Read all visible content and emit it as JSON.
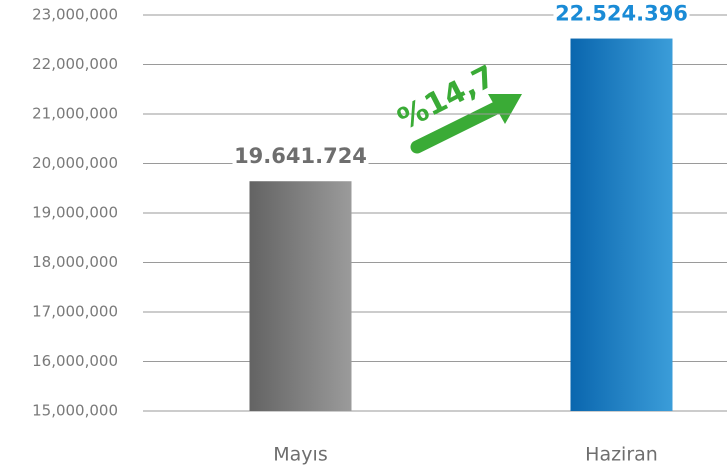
{
  "chart_data": {
    "type": "bar",
    "categories": [
      "Mayıs",
      "Haziran"
    ],
    "values": [
      19641724,
      22524396
    ],
    "value_labels": [
      "19.641.724",
      "22.524.396"
    ],
    "gradients": [
      [
        "#636363",
        "#9b9b9b"
      ],
      [
        "#0a66ae",
        "#3b9dd9"
      ]
    ],
    "label_colors": [
      "#6e6e6e",
      "#1a8bd6"
    ],
    "annotation": "%14,7",
    "annotation_color": "#3aab36",
    "ylim": [
      15000000,
      23000000
    ],
    "yticks": [
      {
        "value": 15000000,
        "label": "15,000,000"
      },
      {
        "value": 16000000,
        "label": "16,000,000"
      },
      {
        "value": 17000000,
        "label": "17,000,000"
      },
      {
        "value": 18000000,
        "label": "18,000,000"
      },
      {
        "value": 19000000,
        "label": "19,000,000"
      },
      {
        "value": 20000000,
        "label": "20,000,000"
      },
      {
        "value": 21000000,
        "label": "21,000,000"
      },
      {
        "value": 22000000,
        "label": "22,000,000"
      },
      {
        "value": 23000000,
        "label": "23,000,000"
      }
    ],
    "grid": true
  }
}
